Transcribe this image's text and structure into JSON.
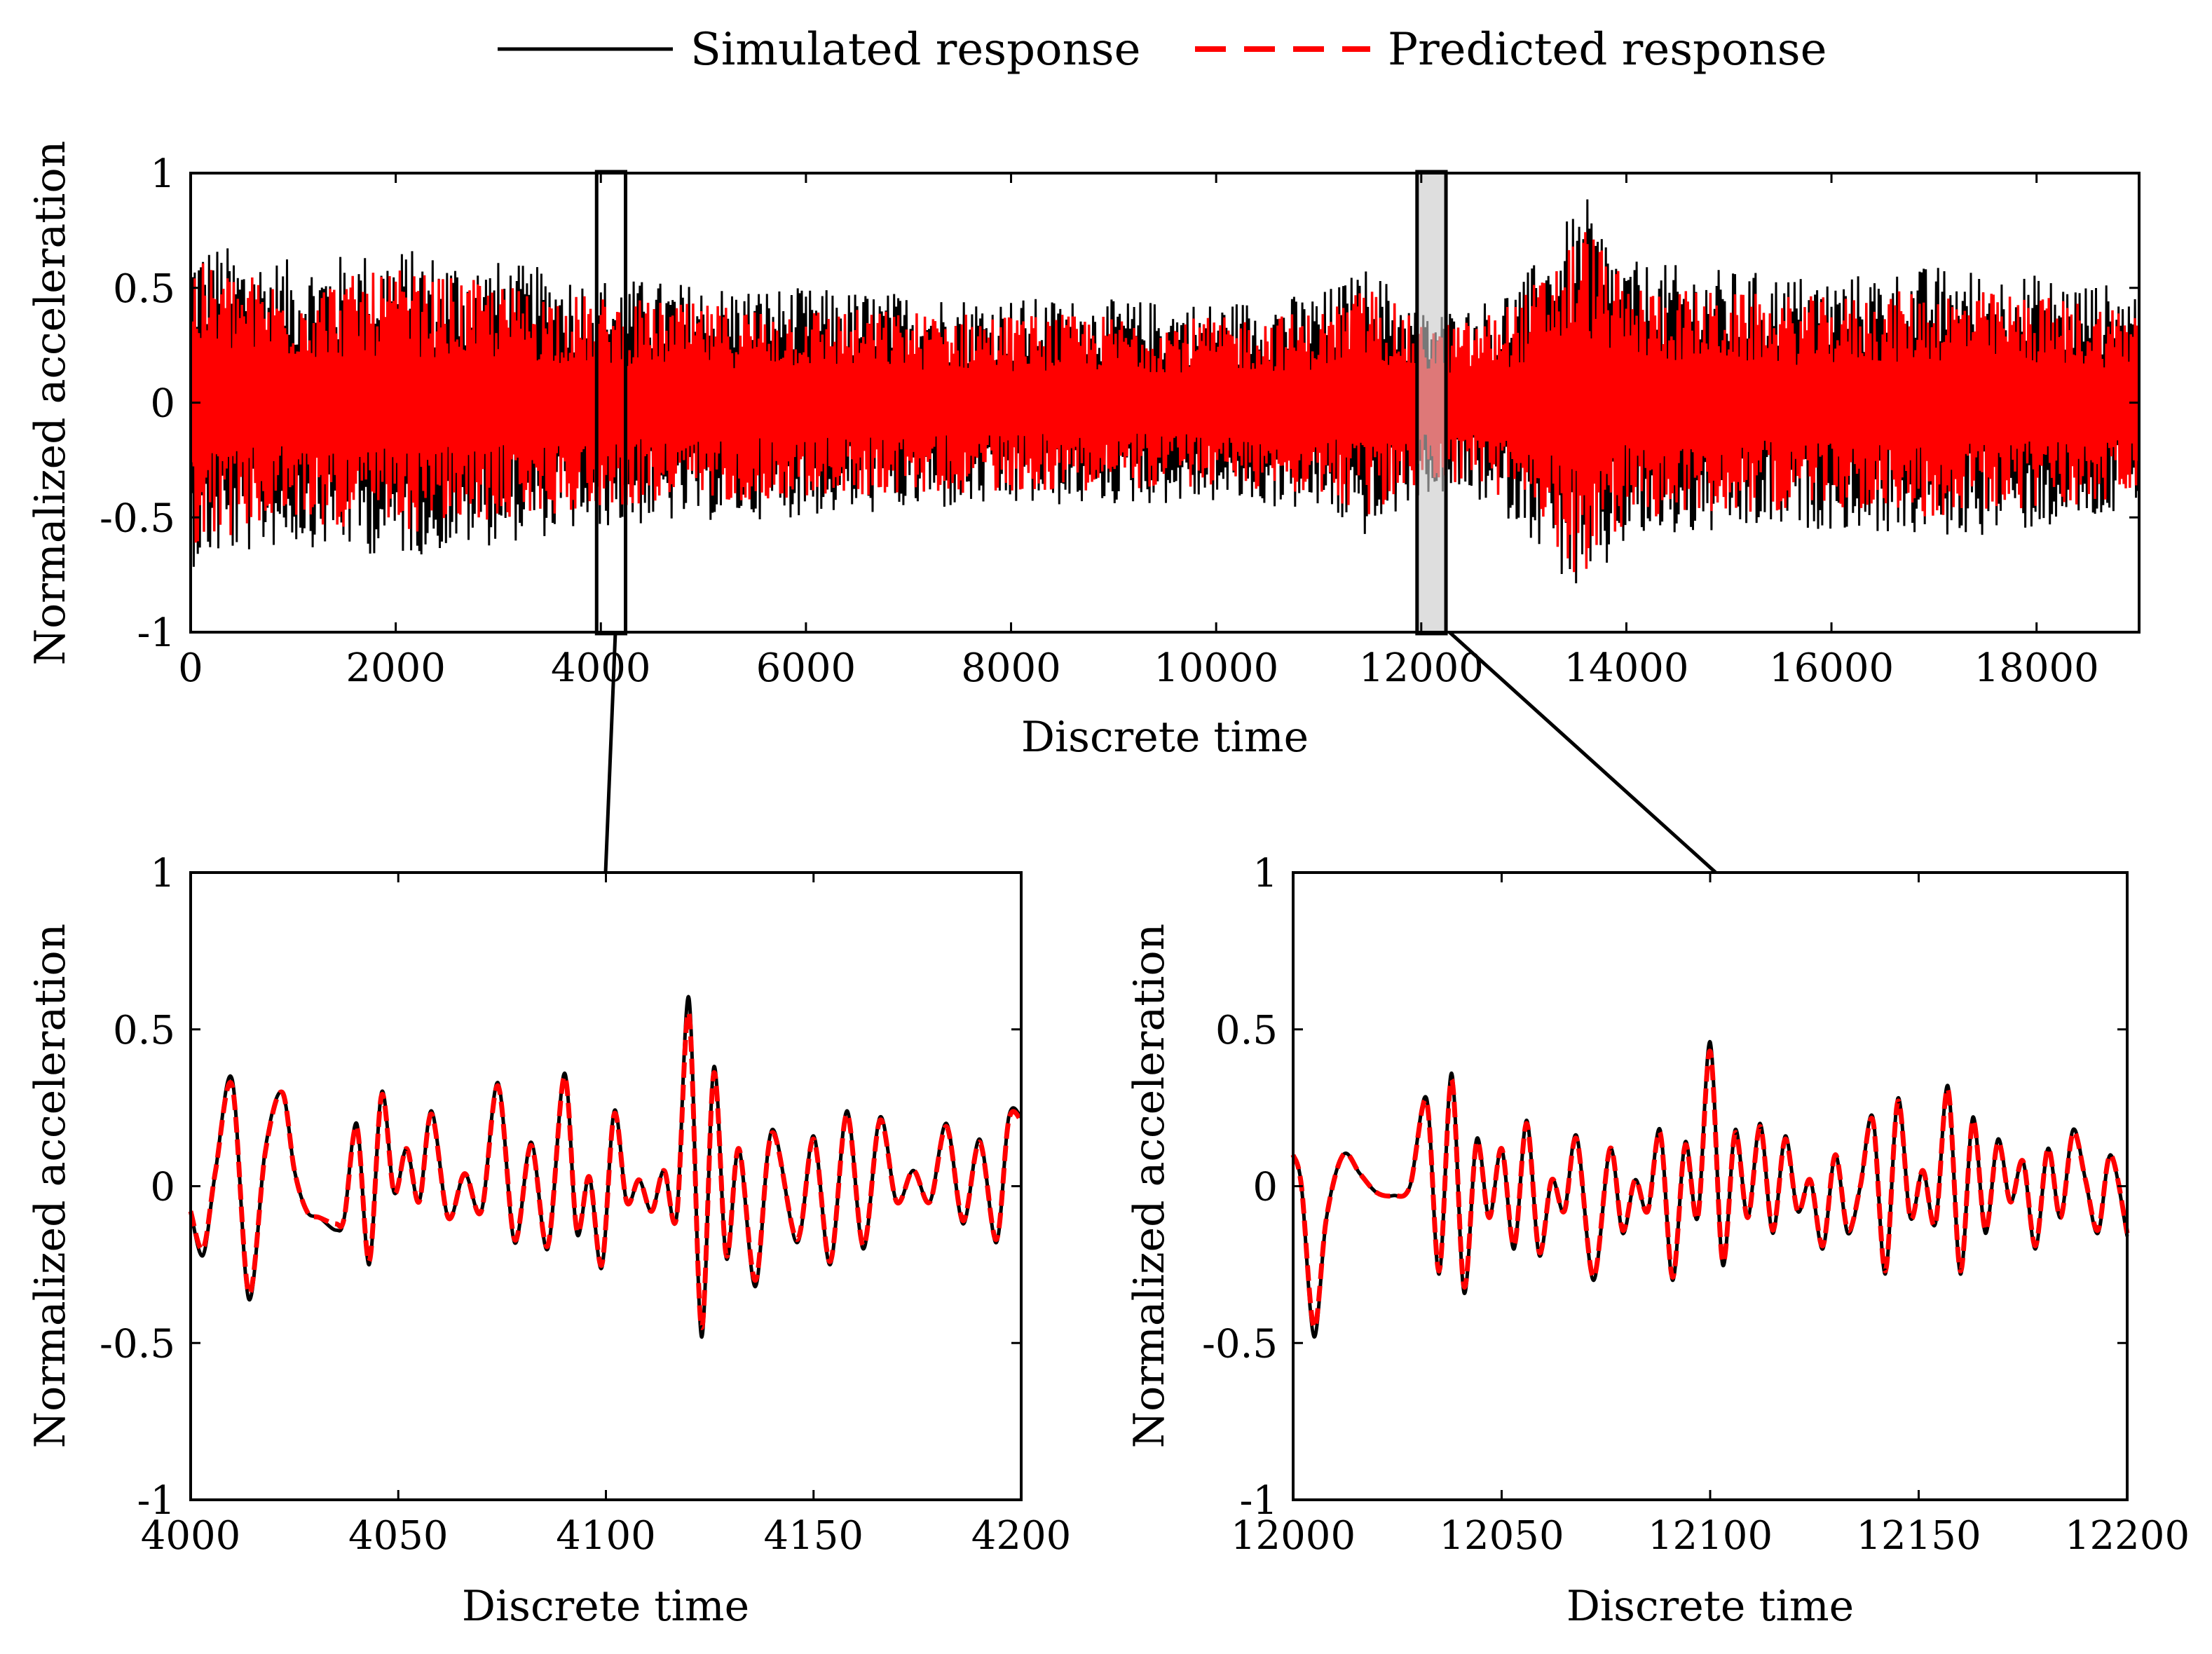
{
  "legend": [
    {
      "label": "Simulated response",
      "color": "#000000",
      "style": "solid"
    },
    {
      "label": "Predicted response",
      "color": "#ff0000",
      "style": "dashed"
    }
  ],
  "colors": {
    "simulated": "#000000",
    "predicted": "#ff0000",
    "axes": "#000000"
  },
  "chart_data": [
    {
      "id": "overview",
      "type": "line",
      "title": "",
      "xlabel": "Discrete time",
      "ylabel": "Normalized acceleration",
      "xlim": [
        0,
        19000
      ],
      "ylim": [
        -1,
        1
      ],
      "xticks": [
        0,
        2000,
        4000,
        6000,
        8000,
        10000,
        12000,
        14000,
        16000,
        18000
      ],
      "yticks": [
        1,
        0.5,
        0,
        -0.5,
        -1
      ],
      "ytick_labels": [
        "1",
        "0.5",
        "0",
        "-0.5",
        "-1"
      ],
      "series": [
        {
          "name": "Simulated response",
          "envelope_approx": {
            "x": [
              0,
              1000,
              2000,
              3000,
              4000,
              5000,
              6000,
              7000,
              8000,
              9000,
              10000,
              11000,
              11500,
              12000,
              12500,
              13000,
              13600,
              14000,
              15000,
              16000,
              17000,
              18000,
              19000
            ],
            "upper": [
              0.72,
              0.62,
              0.68,
              0.62,
              0.55,
              0.52,
              0.5,
              0.48,
              0.46,
              0.45,
              0.44,
              0.48,
              0.6,
              0.4,
              0.42,
              0.55,
              0.9,
              0.62,
              0.58,
              0.55,
              0.6,
              0.56,
              0.5
            ],
            "lower": [
              -0.72,
              -0.62,
              -0.68,
              -0.62,
              -0.55,
              -0.52,
              -0.5,
              -0.48,
              -0.46,
              -0.45,
              -0.44,
              -0.48,
              -0.6,
              -0.4,
              -0.42,
              -0.55,
              -0.9,
              -0.62,
              -0.58,
              -0.55,
              -0.6,
              -0.56,
              -0.5
            ]
          }
        },
        {
          "name": "Predicted response",
          "envelope_approx": {
            "x": [
              0,
              1000,
              2000,
              3000,
              4000,
              5000,
              6000,
              7000,
              8000,
              9000,
              10000,
              11000,
              11500,
              12000,
              12500,
              13000,
              13600,
              14000,
              15000,
              16000,
              17000,
              18000,
              19000
            ],
            "upper": [
              0.62,
              0.52,
              0.58,
              0.52,
              0.46,
              0.43,
              0.42,
              0.4,
              0.39,
              0.38,
              0.37,
              0.4,
              0.52,
              0.34,
              0.36,
              0.47,
              0.8,
              0.52,
              0.48,
              0.46,
              0.5,
              0.47,
              0.42
            ],
            "lower": [
              -0.62,
              -0.52,
              -0.58,
              -0.52,
              -0.46,
              -0.43,
              -0.42,
              -0.4,
              -0.39,
              -0.38,
              -0.37,
              -0.4,
              -0.52,
              -0.34,
              -0.36,
              -0.47,
              -0.8,
              -0.52,
              -0.48,
              -0.46,
              -0.5,
              -0.47,
              -0.42
            ]
          }
        }
      ],
      "zoom_windows": [
        [
          4000,
          4200
        ],
        [
          12000,
          12200
        ]
      ]
    },
    {
      "id": "zoom-4000",
      "type": "line",
      "title": "",
      "xlabel": "Discrete time",
      "ylabel": "Normalized acceleration",
      "xlim": [
        4000,
        4200
      ],
      "ylim": [
        -1,
        1
      ],
      "xticks": [
        4000,
        4050,
        4100,
        4150,
        4200
      ],
      "yticks": [
        1,
        0.5,
        0,
        -0.5,
        -1
      ],
      "ytick_labels": [
        "1",
        "0.5",
        "0",
        "-0.5",
        "-1"
      ],
      "series": [
        {
          "name": "Simulated response",
          "x": [
            4000,
            4003,
            4006,
            4010,
            4014,
            4018,
            4022,
            4025,
            4028,
            4031,
            4035,
            4037,
            4040,
            4043,
            4046,
            4049,
            4052,
            4055,
            4058,
            4062,
            4066,
            4070,
            4074,
            4078,
            4082,
            4086,
            4090,
            4093,
            4096,
            4099,
            4102,
            4105,
            4108,
            4111,
            4114,
            4117,
            4120,
            4123,
            4126,
            4129,
            4132,
            4136,
            4140,
            4146,
            4150,
            4154,
            4158,
            4162,
            4166,
            4170,
            4174,
            4178,
            4182,
            4186,
            4190,
            4194,
            4197,
            4200
          ],
          "y": [
            -0.08,
            -0.22,
            0.05,
            0.34,
            -0.36,
            0.12,
            0.3,
            0.05,
            -0.08,
            -0.1,
            -0.14,
            -0.1,
            0.2,
            -0.25,
            0.3,
            -0.02,
            0.12,
            -0.05,
            0.24,
            -0.1,
            0.04,
            -0.08,
            0.33,
            -0.18,
            0.14,
            -0.2,
            0.36,
            -0.15,
            0.03,
            -0.26,
            0.24,
            -0.05,
            0.02,
            -0.08,
            0.05,
            -0.1,
            0.6,
            -0.48,
            0.38,
            -0.23,
            0.12,
            -0.32,
            0.18,
            -0.18,
            0.16,
            -0.25,
            0.24,
            -0.2,
            0.22,
            -0.05,
            0.05,
            -0.05,
            0.2,
            -0.12,
            0.15,
            -0.18,
            0.22,
            0.22
          ]
        },
        {
          "name": "Predicted response",
          "x": [
            4000,
            4003,
            4006,
            4010,
            4014,
            4018,
            4022,
            4025,
            4028,
            4031,
            4035,
            4037,
            4040,
            4043,
            4046,
            4049,
            4052,
            4055,
            4058,
            4062,
            4066,
            4070,
            4074,
            4078,
            4082,
            4086,
            4090,
            4093,
            4096,
            4099,
            4102,
            4105,
            4108,
            4111,
            4114,
            4117,
            4120,
            4123,
            4126,
            4129,
            4132,
            4136,
            4140,
            4146,
            4150,
            4154,
            4158,
            4162,
            4166,
            4170,
            4174,
            4178,
            4182,
            4186,
            4190,
            4194,
            4197,
            4200
          ],
          "y": [
            -0.08,
            -0.2,
            0.05,
            0.32,
            -0.34,
            0.11,
            0.3,
            0.05,
            -0.08,
            -0.1,
            -0.12,
            -0.1,
            0.19,
            -0.24,
            0.29,
            -0.02,
            0.12,
            -0.05,
            0.23,
            -0.1,
            0.04,
            -0.08,
            0.32,
            -0.17,
            0.13,
            -0.19,
            0.35,
            -0.14,
            0.03,
            -0.25,
            0.23,
            -0.05,
            0.02,
            -0.08,
            0.05,
            -0.1,
            0.55,
            -0.45,
            0.36,
            -0.22,
            0.12,
            -0.3,
            0.17,
            -0.17,
            0.15,
            -0.24,
            0.23,
            -0.19,
            0.21,
            -0.05,
            0.05,
            -0.05,
            0.19,
            -0.11,
            0.14,
            -0.17,
            0.21,
            0.21
          ]
        }
      ]
    },
    {
      "id": "zoom-12000",
      "type": "line",
      "title": "",
      "xlabel": "Discrete time",
      "ylabel": "Normalized acceleration",
      "xlim": [
        12000,
        12200
      ],
      "ylim": [
        -1,
        1
      ],
      "xticks": [
        12000,
        12050,
        12100,
        12150,
        12200
      ],
      "yticks": [
        1,
        0.5,
        0,
        -0.5,
        -1
      ],
      "ytick_labels": [
        "1",
        "0.5",
        "0",
        "-0.5",
        "-1"
      ],
      "series": [
        {
          "name": "Simulated response",
          "x": [
            12000,
            12002,
            12005,
            12008,
            12012,
            12016,
            12020,
            12024,
            12028,
            12032,
            12035,
            12038,
            12041,
            12044,
            12047,
            12050,
            12053,
            12056,
            12059,
            12062,
            12065,
            12068,
            12072,
            12076,
            12079,
            12082,
            12085,
            12088,
            12091,
            12094,
            12097,
            12100,
            12103,
            12106,
            12109,
            12112,
            12115,
            12118,
            12121,
            12124,
            12127,
            12130,
            12133,
            12136,
            12139,
            12142,
            12145,
            12148,
            12151,
            12154,
            12157,
            12160,
            12163,
            12166,
            12169,
            12172,
            12175,
            12178,
            12181,
            12184,
            12187,
            12190,
            12193,
            12196,
            12200
          ],
          "y": [
            0.1,
            0.0,
            -0.48,
            -0.1,
            0.1,
            0.04,
            -0.02,
            -0.03,
            0.0,
            0.28,
            -0.28,
            0.36,
            -0.34,
            0.15,
            -0.1,
            0.12,
            -0.2,
            0.21,
            -0.22,
            0.02,
            -0.08,
            0.16,
            -0.3,
            0.12,
            -0.15,
            0.02,
            -0.08,
            0.18,
            -0.3,
            0.14,
            -0.1,
            0.46,
            -0.25,
            0.18,
            -0.1,
            0.2,
            -0.15,
            0.16,
            -0.08,
            0.02,
            -0.2,
            0.1,
            -0.15,
            0.0,
            0.22,
            -0.28,
            0.28,
            -0.1,
            0.05,
            -0.12,
            0.32,
            -0.28,
            0.22,
            -0.15,
            0.15,
            -0.05,
            0.08,
            -0.2,
            0.12,
            -0.1,
            0.18,
            0.02,
            -0.15,
            0.1,
            -0.16
          ]
        },
        {
          "name": "Predicted response",
          "x": [
            12000,
            12002,
            12005,
            12008,
            12012,
            12016,
            12020,
            12024,
            12028,
            12032,
            12035,
            12038,
            12041,
            12044,
            12047,
            12050,
            12053,
            12056,
            12059,
            12062,
            12065,
            12068,
            12072,
            12076,
            12079,
            12082,
            12085,
            12088,
            12091,
            12094,
            12097,
            12100,
            12103,
            12106,
            12109,
            12112,
            12115,
            12118,
            12121,
            12124,
            12127,
            12130,
            12133,
            12136,
            12139,
            12142,
            12145,
            12148,
            12151,
            12154,
            12157,
            12160,
            12163,
            12166,
            12169,
            12172,
            12175,
            12178,
            12181,
            12184,
            12187,
            12190,
            12193,
            12196,
            12200
          ],
          "y": [
            0.1,
            0.0,
            -0.45,
            -0.1,
            0.1,
            0.04,
            -0.02,
            -0.03,
            0.0,
            0.27,
            -0.27,
            0.34,
            -0.32,
            0.14,
            -0.1,
            0.12,
            -0.19,
            0.2,
            -0.21,
            0.02,
            -0.08,
            0.15,
            -0.29,
            0.12,
            -0.14,
            0.02,
            -0.08,
            0.17,
            -0.29,
            0.13,
            -0.1,
            0.43,
            -0.24,
            0.17,
            -0.1,
            0.19,
            -0.14,
            0.15,
            -0.08,
            0.02,
            -0.19,
            0.1,
            -0.14,
            0.0,
            0.21,
            -0.27,
            0.27,
            -0.1,
            0.05,
            -0.12,
            0.31,
            -0.27,
            0.21,
            -0.14,
            0.14,
            -0.05,
            0.08,
            -0.19,
            0.12,
            -0.1,
            0.17,
            0.02,
            -0.14,
            0.1,
            -0.15
          ]
        }
      ]
    }
  ]
}
